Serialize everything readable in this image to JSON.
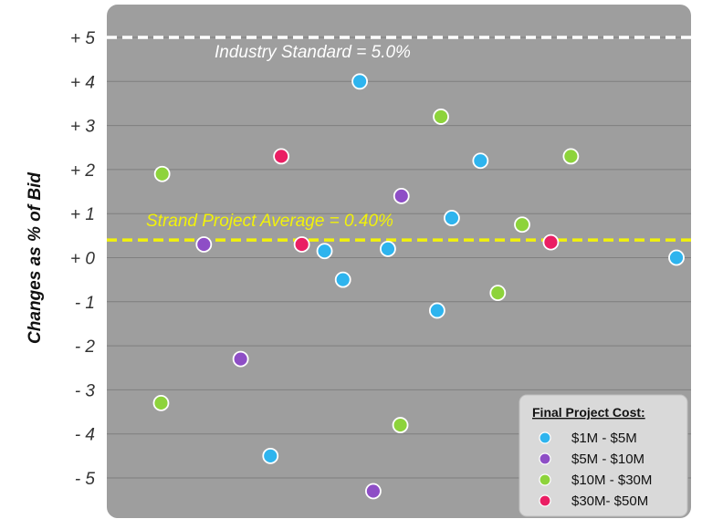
{
  "chart_data": {
    "type": "scatter",
    "ylabel": "Changes as % of Bid",
    "xlabel": "",
    "ylim": [
      -5.6,
      5.5
    ],
    "xlim": [
      0,
      100
    ],
    "y_ticks": [
      5,
      4,
      3,
      2,
      1,
      0,
      -1,
      -2,
      -3,
      -4,
      -5
    ],
    "y_tick_labels": [
      "+ 5",
      "+ 4",
      "+ 3",
      "+ 2",
      "+ 1",
      "+ 0",
      "- 1",
      "- 2",
      "- 3",
      "- 4",
      "- 5"
    ],
    "grid": true,
    "reference_lines": [
      {
        "label": "Industry Standard = 5.0%",
        "y": 5.0,
        "color": "#ffffff"
      },
      {
        "label": "Strand Project Average = 0.40%",
        "y": 0.4,
        "color": "#f2f20a"
      }
    ],
    "legend": {
      "title": "Final Project Cost:",
      "position": "bottom-right"
    },
    "series": [
      {
        "name": "$1M - $5M",
        "color": "#2eb4ee",
        "points": [
          [
            41.5,
            4.0
          ],
          [
            25.0,
            -4.5
          ],
          [
            35.0,
            0.15
          ],
          [
            38.4,
            -0.5
          ],
          [
            46.7,
            0.2
          ],
          [
            58.5,
            0.9
          ],
          [
            55.8,
            -1.2
          ],
          [
            63.8,
            2.2
          ],
          [
            100.0,
            0.0
          ]
        ]
      },
      {
        "name": "$5M - $10M",
        "color": "#8e4ec6",
        "points": [
          [
            12.7,
            0.3
          ],
          [
            19.5,
            -2.3
          ],
          [
            44.0,
            -5.3
          ],
          [
            49.2,
            1.4
          ]
        ]
      },
      {
        "name": "$10M - $30M",
        "color": "#8dd33b",
        "points": [
          [
            5.0,
            1.9
          ],
          [
            4.8,
            -3.3
          ],
          [
            49.0,
            -3.8
          ],
          [
            56.5,
            3.2
          ],
          [
            67.0,
            -0.8
          ],
          [
            71.5,
            0.75
          ],
          [
            80.5,
            2.3
          ]
        ]
      },
      {
        "name": "$30M- $50M",
        "color": "#ea1e63",
        "points": [
          [
            27.0,
            2.3
          ],
          [
            30.8,
            0.3
          ],
          [
            76.8,
            0.35
          ]
        ]
      }
    ]
  }
}
